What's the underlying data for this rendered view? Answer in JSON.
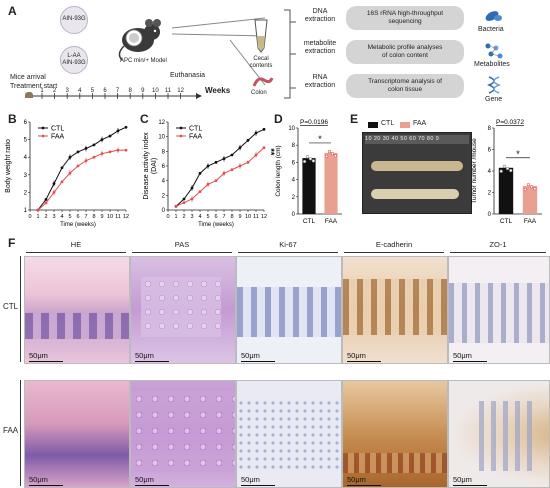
{
  "panel_a": {
    "label": "A",
    "diet_ctl": "AIN-93G",
    "diet_faa_1": "L-AA",
    "diet_faa_2": "AIN-93G",
    "model": "APC min/+ Model",
    "arrival": "Mice arrival",
    "treatment": "Treatment start",
    "euthanasia": "Euthanasia",
    "weeks_label": "Weeks",
    "week_ticks": [
      "1",
      "2",
      "3",
      "4",
      "5",
      "6",
      "7",
      "8",
      "9",
      "10",
      "11",
      "12"
    ],
    "cecal": "Cecal\ncontents",
    "colon": "Colon",
    "extractions": [
      "DNA\nextraction",
      "metabolite\nextraction",
      "RNA\nextraction"
    ],
    "analyses": [
      "16S rRNA high-throughput\nsequencing",
      "Metabolic profile analyses\nof colon content",
      "Transcriptome analysis of\ncolon tissue"
    ],
    "outputs": [
      "Bacteria",
      "Metabolites",
      "Gene"
    ],
    "colors": {
      "pill": "#d4d4d4",
      "icon_blue": "#2d6cb5",
      "mouse": "#3a3a3a"
    }
  },
  "panel_b": {
    "label": "B"
  },
  "panel_c": {
    "label": "C"
  },
  "panel_d": {
    "label": "D"
  },
  "panel_e": {
    "label": "E",
    "legend_ctl": "CTL",
    "legend_faa": "FAA",
    "ruler": "10 20 30 40 50 60 70 80 9"
  },
  "panel_f": {
    "label": "F",
    "columns": [
      "HE",
      "PAS",
      "Ki-67",
      "E-cadherin",
      "ZO-1"
    ],
    "rows": [
      "CTL",
      "FAA"
    ],
    "scale": "50μm"
  },
  "chart_data": [
    {
      "type": "line",
      "panel": "B",
      "xlabel": "Time (weeks)",
      "ylabel": "Body weight ratio",
      "x": [
        1,
        2,
        3,
        4,
        5,
        6,
        7,
        8,
        9,
        10,
        11,
        12
      ],
      "xlim": [
        0,
        12
      ],
      "ylim": [
        1,
        6
      ],
      "yticks": [
        1,
        2,
        3,
        4,
        5,
        6
      ],
      "series": [
        {
          "name": "CTL",
          "color": "#111111",
          "values": [
            1.0,
            1.6,
            2.5,
            3.4,
            4.0,
            4.3,
            4.5,
            4.7,
            5.0,
            5.2,
            5.5,
            5.7
          ]
        },
        {
          "name": "FAA",
          "color": "#e05050",
          "values": [
            1.0,
            1.4,
            2.0,
            2.6,
            3.1,
            3.5,
            3.8,
            4.0,
            4.2,
            4.3,
            4.4,
            4.4
          ]
        }
      ]
    },
    {
      "type": "line",
      "panel": "C",
      "xlabel": "Time (weeks)",
      "ylabel": "Disease activity index\n(DAI)",
      "x": [
        1,
        2,
        3,
        4,
        5,
        6,
        7,
        8,
        9,
        10,
        11,
        12
      ],
      "xlim": [
        0,
        12
      ],
      "ylim": [
        0,
        12
      ],
      "yticks": [
        0,
        2,
        4,
        6,
        8,
        10,
        12
      ],
      "significance": "**",
      "series": [
        {
          "name": "CTL",
          "color": "#111111",
          "values": [
            0.5,
            1.5,
            3.0,
            5.0,
            6.0,
            6.5,
            7.0,
            7.5,
            8.5,
            9.5,
            10.5,
            11.0
          ]
        },
        {
          "name": "FAA",
          "color": "#e05050",
          "values": [
            0.5,
            1.0,
            1.5,
            2.5,
            3.5,
            4.0,
            5.0,
            5.5,
            6.0,
            6.5,
            7.5,
            8.5
          ]
        }
      ]
    },
    {
      "type": "bar",
      "panel": "D",
      "ylabel": "Colon length (cm)",
      "categories": [
        "CTL",
        "FAA"
      ],
      "values": [
        6.5,
        7.1
      ],
      "ylim": [
        0,
        10
      ],
      "yticks": [
        0,
        2,
        4,
        6,
        8,
        10
      ],
      "pvalue": "P=0.0196",
      "star": "*",
      "colors": [
        "#111111",
        "#e8a090"
      ]
    },
    {
      "type": "bar",
      "panel": "E",
      "ylabel": "Tumor number /mouse",
      "categories": [
        "CTL",
        "FAA"
      ],
      "values": [
        4.3,
        2.6
      ],
      "ylim": [
        0,
        8
      ],
      "yticks": [
        0,
        2,
        4,
        6,
        8
      ],
      "pvalue": "P=0.0372",
      "star": "*",
      "colors": [
        "#111111",
        "#e8a090"
      ]
    }
  ]
}
